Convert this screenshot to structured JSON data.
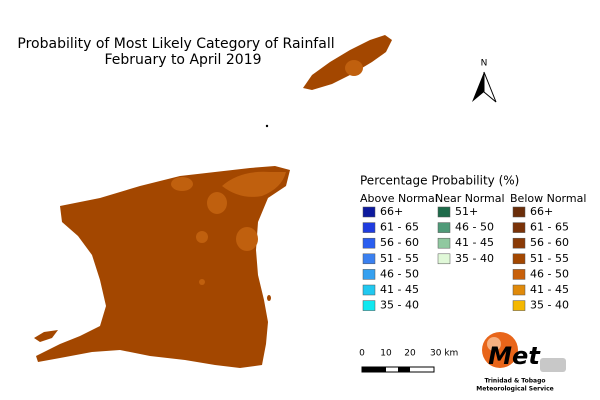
{
  "title": [
    "Probability of Most Likely Category of Rainfall",
    "February to April 2019"
  ],
  "legend": {
    "title": "Percentage Probability  (%)",
    "columns": [
      {
        "header": "Above Normal",
        "items": [
          {
            "label": "66+",
            "color": "#0d1a9e"
          },
          {
            "label": "61 - 65",
            "color": "#1f3ce0"
          },
          {
            "label": "56 - 60",
            "color": "#2a5ef0"
          },
          {
            "label": "51 - 55",
            "color": "#3a80f0"
          },
          {
            "label": "46 - 50",
            "color": "#35a0f0"
          },
          {
            "label": "41 - 45",
            "color": "#20c8f0"
          },
          {
            "label": "35 - 40",
            "color": "#10e8f0"
          }
        ]
      },
      {
        "header": "Near Normal",
        "items": [
          {
            "label": "51+",
            "color": "#1e6b4a"
          },
          {
            "label": "46 - 50",
            "color": "#4f9a78"
          },
          {
            "label": "41 - 45",
            "color": "#90c8a0"
          },
          {
            "label": "35 - 40",
            "color": "#e0f8d8"
          }
        ]
      },
      {
        "header": "Below Normal",
        "items": [
          {
            "label": "66+",
            "color": "#6b2e0a"
          },
          {
            "label": "61 - 65",
            "color": "#7a3208"
          },
          {
            "label": "56 - 60",
            "color": "#8a3a06"
          },
          {
            "label": "51 - 55",
            "color": "#a34700"
          },
          {
            "label": "46 - 50",
            "color": "#c8600a"
          },
          {
            "label": "41 - 45",
            "color": "#e08a0a"
          },
          {
            "label": "35 - 40",
            "color": "#f5b800"
          }
        ]
      }
    ]
  },
  "scale": {
    "labels": [
      "0",
      "10",
      "20",
      "30 km"
    ]
  },
  "north": "N",
  "logo": {
    "name": "Met",
    "lines": [
      "Trinidad & Tobago",
      "Meteorological Service"
    ]
  }
}
